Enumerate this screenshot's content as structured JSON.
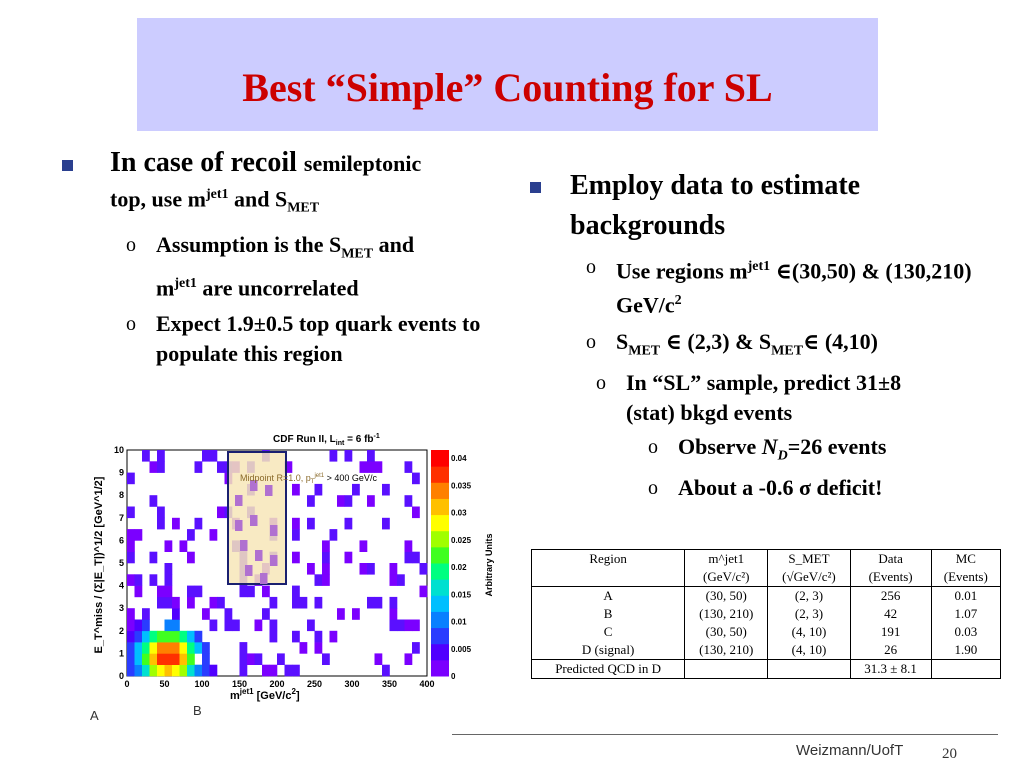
{
  "title": "Best “Simple” Counting for SL",
  "left": {
    "bullet1_a": "In case of recoil ",
    "bullet1_b": "semileptonic",
    "bullet1_c": "top, use m",
    "bullet1_sup": "jet1",
    "bullet1_d": " and S",
    "bullet1_sub": "MET",
    "sub1_a": "Assumption is the S",
    "sub1_sub": "MET",
    "sub1_b": " and",
    "sub1_c": "m",
    "sub1_sup": "jet1",
    "sub1_d": " are uncorrelated",
    "sub2": "Expect 1.9±0.5 top quark events to populate this region"
  },
  "right": {
    "bullet1": "Employ data to estimate backgrounds",
    "sub1_a": "Use regions m",
    "sub1_sup": "jet1",
    "sub1_b": " ∈(30,50) & (130,210) GeV/c",
    "sub1_sup2": "2",
    "sub2_a": "S",
    "sub2_sub": "MET",
    "sub2_b": " ∈ (2,3) & S",
    "sub2_sub2": "MET",
    "sub2_c": "∈ (4,10)",
    "sub3_a": "In “SL” sample, predict 31±8 (stat) bkgd events",
    "sub4_a": "Observe ",
    "sub4_n": "N",
    "sub4_nsub": "D",
    "sub4_b": "=26 events",
    "sub5": "About a -0.6 σ deficit!"
  },
  "plot": {
    "title": "CDF Run II, L",
    "title_sub": "int",
    "title_b": " = 6 fb",
    "title_sup": "-1",
    "annotation": "Midpoint R=1.0, p",
    "annotation_sub": "T",
    "annotation_sup": "jet1",
    "annotation_b": " > 400 GeV/c",
    "xlabel": "m",
    "xlabel_sup": "jet1",
    "xlabel_b": " [GeV/c",
    "xlabel_sup2": "2",
    "xlabel_c": "]",
    "ylabel": "E_T^miss / (Σ|E_T|)^1/2 [GeV^1/2]",
    "zlabel": "Arbitrary Units",
    "x_ticks": [
      "0",
      "50",
      "100",
      "150",
      "200",
      "250",
      "300",
      "350",
      "400"
    ],
    "y_ticks": [
      "0",
      "1",
      "2",
      "3",
      "4",
      "5",
      "6",
      "7",
      "8",
      "9",
      "10"
    ],
    "z_ticks": [
      "0",
      "0.005",
      "0.01",
      "0.015",
      "0.02",
      "0.025",
      "0.03",
      "0.035",
      "0.04"
    ],
    "label_a": "A",
    "label_b": "B"
  },
  "table": {
    "headers": [
      "Region",
      "m^jet1",
      "S_MET",
      "Data",
      "MC"
    ],
    "units": [
      "",
      "(GeV/c²)",
      "(√GeV/c²)",
      "(Events)",
      "(Events)"
    ],
    "rows": [
      [
        "A",
        "(30, 50)",
        "(2, 3)",
        "256",
        "0.01"
      ],
      [
        "B",
        "(130, 210)",
        "(2, 3)",
        "42",
        "1.07"
      ],
      [
        "C",
        "(30, 50)",
        "(4, 10)",
        "191",
        "0.03"
      ],
      [
        "D (signal)",
        "(130, 210)",
        "(4, 10)",
        "26",
        "1.90"
      ]
    ],
    "last_row": [
      "Predicted QCD in D",
      "",
      "",
      "31.3 ± 8.1",
      ""
    ]
  },
  "footer": {
    "org": "Weizmann/UofT",
    "page": "20"
  }
}
